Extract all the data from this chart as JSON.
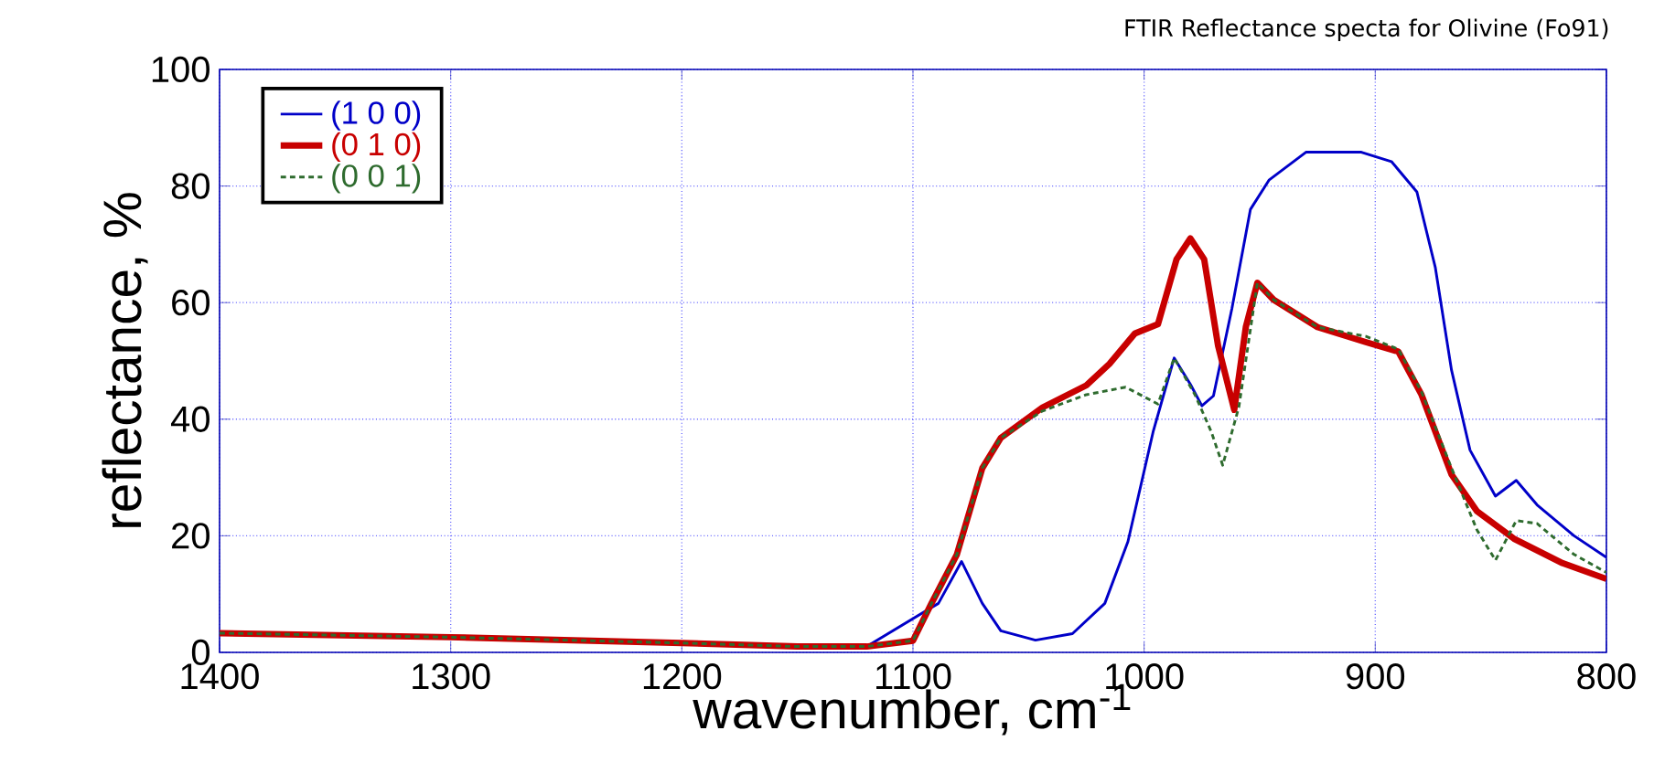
{
  "chart_data": {
    "type": "line",
    "title": "FTIR Reflectance specta for Olivine (Fo91)",
    "xlabel": "wavenumber, cm$^{-1}$",
    "ylabel": "reflectance, %",
    "xlim": [
      1400,
      800
    ],
    "xticks": [
      1400,
      1300,
      1200,
      1100,
      1000,
      900,
      800
    ],
    "ylim": [
      0,
      100
    ],
    "yticks": [
      0,
      20,
      40,
      60,
      80,
      100
    ],
    "grid": true,
    "legend": "top left",
    "marker": "none",
    "series": [
      {
        "name": "(1 0 0)",
        "color": "#0000c8",
        "line_style": "solid",
        "x": [
          1400,
          1300,
          1200,
          1150,
          1120,
          1089,
          1079,
          1070,
          1062,
          1047,
          1031,
          1017,
          1007,
          996,
          987,
          980,
          975,
          970,
          962,
          954,
          946,
          930,
          906,
          893,
          882,
          874,
          867,
          859,
          848,
          839,
          830,
          814,
          800
        ],
        "values": [
          3.3,
          2.6,
          1.6,
          1.1,
          1.0,
          8.4,
          15.6,
          8.4,
          3.7,
          2.1,
          3.2,
          8.4,
          19,
          38,
          50.5,
          46,
          42.3,
          44,
          59,
          76,
          81,
          85.8,
          85.8,
          84.2,
          79,
          66,
          48.4,
          34.7,
          26.8,
          29.5,
          25.3,
          20,
          16.3
        ]
      },
      {
        "name": "(0 1 0)",
        "color": "#c80000",
        "line_style": "solid",
        "x": [
          1400,
          1300,
          1200,
          1150,
          1120,
          1100,
          1092,
          1081,
          1070,
          1062,
          1044,
          1025,
          1015,
          1004,
          994,
          986,
          980,
          974,
          968,
          961,
          956,
          951,
          944,
          925,
          904,
          890,
          880,
          867,
          856,
          840,
          819,
          800
        ],
        "values": [
          3.3,
          2.6,
          1.6,
          1.0,
          1.0,
          2.0,
          8.4,
          16.8,
          31.6,
          36.8,
          42,
          45.8,
          49.5,
          54.7,
          56.3,
          67.4,
          71,
          67.4,
          52.6,
          41.6,
          55.8,
          63.4,
          60.5,
          55.8,
          53.2,
          51.6,
          44.2,
          30.5,
          24.2,
          19.5,
          15.3,
          12.6
        ]
      },
      {
        "name": "(0 0 1)",
        "color": "#2e6b2e",
        "line_style": "dashed",
        "x": [
          1400,
          1300,
          1200,
          1150,
          1120,
          1100,
          1092,
          1081,
          1070,
          1062,
          1044,
          1025,
          1008,
          994,
          987,
          978,
          971,
          966,
          959,
          951,
          944,
          925,
          904,
          890,
          880,
          867,
          856,
          848,
          839,
          830,
          814,
          800
        ],
        "values": [
          3.3,
          2.6,
          1.6,
          1.0,
          1.0,
          2.0,
          8.4,
          16.8,
          31.6,
          36.8,
          41.4,
          44.2,
          45.5,
          42.6,
          50.5,
          44.2,
          37.9,
          32.1,
          42.1,
          63.4,
          60.5,
          55.8,
          54.2,
          52,
          44.7,
          31.6,
          21,
          15.8,
          22.6,
          22.1,
          16.8,
          13.7
        ]
      }
    ]
  }
}
